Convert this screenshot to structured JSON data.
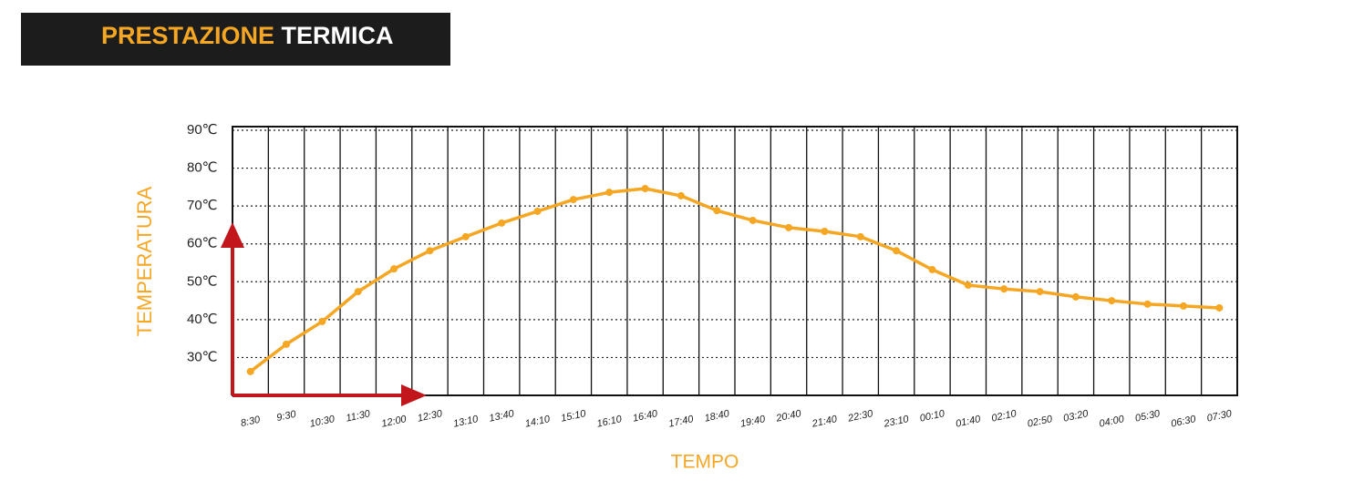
{
  "chart_data": {
    "type": "line",
    "title": [
      "PRESTAZIONE",
      "TERMICA"
    ],
    "y_label": "TEMPERATURA",
    "x_label": "TEMPO",
    "categories": [
      "8:30",
      "9:30",
      "10:30",
      "11:30",
      "12:00",
      "12:30",
      "13:10",
      "13:40",
      "14:10",
      "15:10",
      "16:10",
      "16:40",
      "17:40",
      "18:40",
      "19:40",
      "20:40",
      "21:40",
      "22:30",
      "23:10",
      "00:10",
      "01:40",
      "02:10",
      "02:50",
      "03:20",
      "04:00",
      "05:30",
      "06:30",
      "07:30"
    ],
    "series": [
      {
        "name": "Temperatura",
        "color": "#f5a623",
        "values": [
          26.3,
          33.5,
          39.5,
          47.4,
          53.4,
          58.2,
          61.9,
          65.5,
          68.6,
          71.7,
          73.6,
          74.6,
          72.7,
          68.8,
          66.2,
          64.3,
          63.3,
          61.9,
          58.2,
          53.2,
          49.1,
          48.1,
          47.4,
          46.0,
          45.0,
          44.1,
          43.6,
          43.1
        ]
      }
    ],
    "ylim": [
      20,
      90
    ],
    "yticks": [
      {
        "value": 30,
        "label": "30℃"
      },
      {
        "value": 40,
        "label": "40℃"
      },
      {
        "value": 50,
        "label": "50℃"
      },
      {
        "value": 60,
        "label": "60℃"
      },
      {
        "value": 70,
        "label": "70℃"
      },
      {
        "value": 80,
        "label": "80℃"
      },
      {
        "value": 90,
        "label": "90℃"
      }
    ],
    "grid": true
  }
}
